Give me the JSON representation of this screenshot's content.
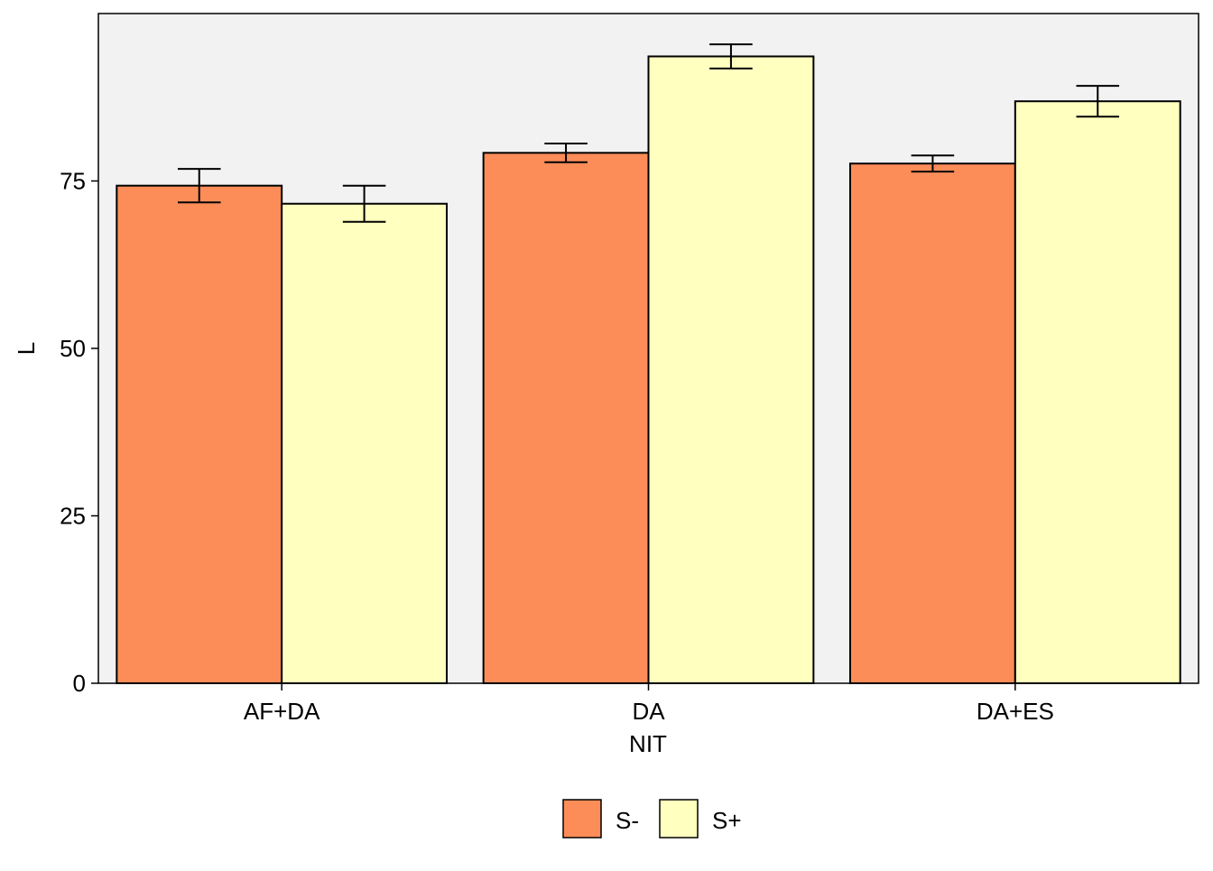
{
  "chart_data": {
    "type": "bar",
    "title": "",
    "xlabel": "NIT",
    "ylabel": "L",
    "categories": [
      "AF+DA",
      "DA",
      "DA+ES"
    ],
    "series": [
      {
        "name": "S-",
        "color": "#FC8D59",
        "values": [
          74.3,
          79.2,
          77.6
        ],
        "error": [
          2.5,
          1.4,
          1.2
        ]
      },
      {
        "name": "S+",
        "color": "#FFFFBF",
        "values": [
          71.6,
          93.6,
          86.9
        ],
        "error": [
          2.7,
          1.8,
          2.3
        ]
      }
    ],
    "ylim": [
      0,
      100
    ],
    "yticks": [
      0,
      25,
      50,
      75
    ],
    "grid": false,
    "panel_background": "#F2F2F2",
    "legend": {
      "placement": "bottom",
      "entries": [
        "S-",
        "S+"
      ]
    }
  }
}
